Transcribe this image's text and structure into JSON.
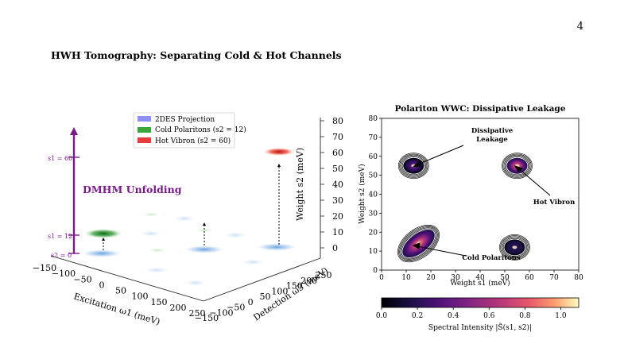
{
  "page": {
    "page_number": "4",
    "section_title": "HWH Tomography: Separating Cold & Hot Channels"
  },
  "left_figure": {
    "legend": [
      "2DES Projection",
      "Cold Polaritons (s2 = 12)",
      "Hot Vibron (s2 = 60)"
    ],
    "legend_colors": [
      "#8f90f5",
      "#3aa53a",
      "#e83b3b"
    ],
    "annotation": "DMHM Unfolding",
    "scale_labels": [
      "s1 = 60",
      "s1 = 12",
      "s2 = 0"
    ],
    "x_axis_label": "Excitation ω1 (meV)",
    "y_axis_label": "Detection ω3 (meV)",
    "z_axis_label": "Weight s2 (meV)",
    "x_ticks": [
      "−150",
      "−100",
      "−50",
      "0",
      "50",
      "100",
      "150",
      "200",
      "250"
    ],
    "y_ticks": [
      "−150",
      "−100",
      "−50",
      "0",
      "50",
      "100",
      "150",
      "200",
      "250"
    ],
    "z_ticks": [
      "0",
      "10",
      "20",
      "30",
      "40",
      "50",
      "60",
      "70",
      "80"
    ]
  },
  "chart_data": {
    "type": "heatmap",
    "title": "Polariton WWC: Dissipative Leakage",
    "xlabel": "Weight s1 (meV)",
    "ylabel": "Weight s2 (meV)",
    "xlim": [
      0,
      80
    ],
    "ylim": [
      0,
      80
    ],
    "x_ticks": [
      "0",
      "10",
      "20",
      "30",
      "40",
      "50",
      "60",
      "70",
      "80"
    ],
    "y_ticks": [
      "0",
      "10",
      "20",
      "30",
      "40",
      "50",
      "60",
      "70",
      "80"
    ],
    "peaks": [
      {
        "label": "Cold Polaritons",
        "s1": 15,
        "s2": 14,
        "intensity": 1.0
      },
      {
        "label": "Hot Vibron",
        "s1": 55,
        "s2": 55,
        "intensity": 0.95
      },
      {
        "label": "",
        "s1": 13,
        "s2": 55,
        "intensity": 0.45
      },
      {
        "label": "",
        "s1": 54,
        "s2": 12,
        "intensity": 0.4
      }
    ],
    "annotations": [
      "Dissipative\nLeakage",
      "Hot Vibron",
      "Cold Polaritons"
    ],
    "colorbar": {
      "label": "Spectral Intensity |S̃(s1, s2)|",
      "range": [
        0.0,
        1.1
      ],
      "ticks": [
        "0.0",
        "0.2",
        "0.4",
        "0.6",
        "0.8",
        "1.0"
      ]
    }
  }
}
